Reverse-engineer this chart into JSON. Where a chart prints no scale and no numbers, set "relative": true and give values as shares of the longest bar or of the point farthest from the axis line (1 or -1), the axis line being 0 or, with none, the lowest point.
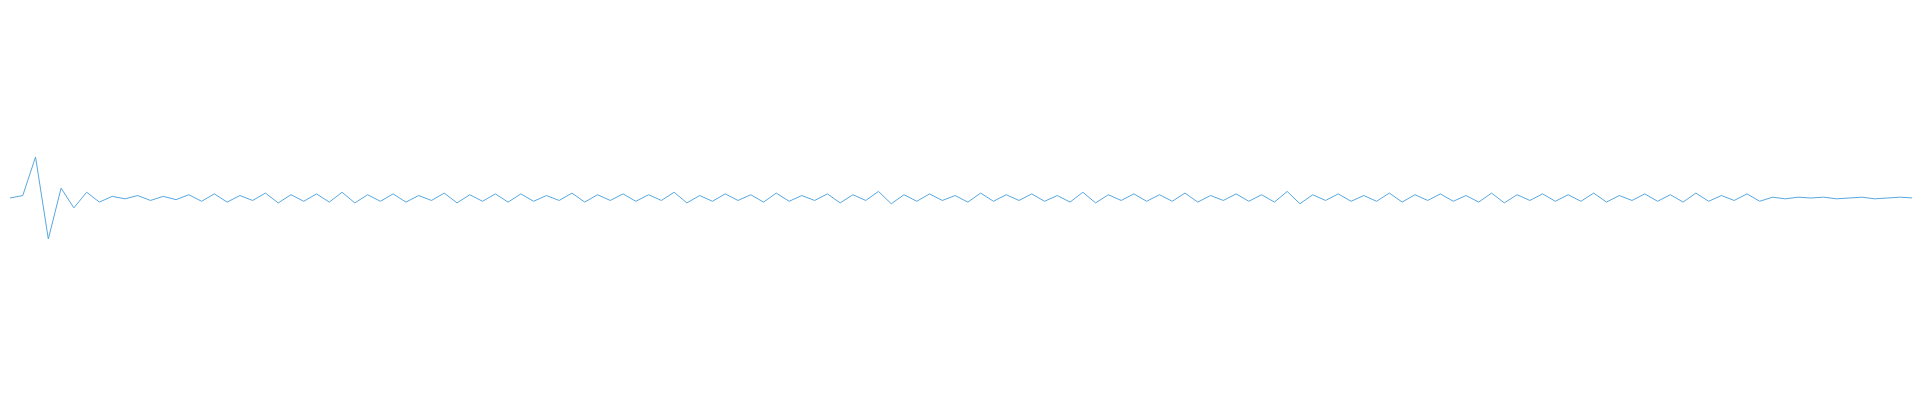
{
  "chart_data": {
    "type": "line",
    "relative": true,
    "color": "#58a8e0",
    "categories": [
      null,
      null,
      null,
      null,
      null,
      null,
      null,
      null,
      null,
      null,
      null,
      null,
      null,
      null,
      null,
      null,
      null,
      null,
      null,
      null,
      null,
      null,
      null,
      null,
      null,
      null,
      null,
      null,
      null,
      null,
      null,
      null,
      null,
      null,
      null,
      null,
      null,
      null,
      null,
      null,
      null,
      null,
      null,
      null,
      null,
      null,
      null,
      null,
      null,
      null,
      null,
      null,
      null,
      null,
      null,
      null,
      null,
      null,
      null,
      null,
      null,
      null,
      null,
      null,
      null,
      null,
      null,
      null,
      null,
      null,
      null,
      null,
      null,
      null,
      null,
      null,
      null,
      null,
      null,
      null,
      null,
      null,
      null,
      null,
      null,
      null,
      null,
      null,
      null,
      null,
      null,
      null,
      null,
      null,
      null,
      null,
      null,
      null,
      null,
      null,
      null,
      null,
      null,
      null,
      null,
      null,
      null,
      null,
      null,
      null,
      null,
      null,
      null,
      null,
      null,
      null,
      null,
      null,
      null,
      null,
      null,
      null,
      null,
      null,
      null,
      null,
      null,
      null,
      null,
      null,
      null,
      null,
      null,
      null,
      null,
      null,
      null,
      null,
      null,
      null,
      null,
      null,
      null,
      null,
      null,
      null,
      null,
      null,
      null,
      null
    ],
    "values": [
      0.5,
      0.53,
      1,
      0,
      0.62,
      0.38,
      0.57,
      0.45,
      0.52,
      0.49,
      0.53,
      0.47,
      0.52,
      0.48,
      0.54,
      0.46,
      0.55,
      0.45,
      0.53,
      0.47,
      0.56,
      0.44,
      0.54,
      0.46,
      0.55,
      0.45,
      0.57,
      0.44,
      0.54,
      0.46,
      0.55,
      0.45,
      0.53,
      0.47,
      0.56,
      0.44,
      0.54,
      0.46,
      0.55,
      0.45,
      0.55,
      0.46,
      0.53,
      0.47,
      0.56,
      0.45,
      0.54,
      0.47,
      0.55,
      0.46,
      0.54,
      0.47,
      0.57,
      0.44,
      0.53,
      0.46,
      0.55,
      0.47,
      0.54,
      0.45,
      0.56,
      0.46,
      0.53,
      0.47,
      0.55,
      0.44,
      0.54,
      0.47,
      0.58,
      0.43,
      0.54,
      0.46,
      0.55,
      0.47,
      0.53,
      0.45,
      0.56,
      0.46,
      0.54,
      0.47,
      0.55,
      0.46,
      0.53,
      0.45,
      0.57,
      0.44,
      0.54,
      0.47,
      0.55,
      0.46,
      0.54,
      0.46,
      0.56,
      0.45,
      0.53,
      0.47,
      0.55,
      0.46,
      0.54,
      0.45,
      0.58,
      0.43,
      0.54,
      0.47,
      0.55,
      0.46,
      0.53,
      0.46,
      0.56,
      0.45,
      0.54,
      0.47,
      0.55,
      0.46,
      0.53,
      0.45,
      0.56,
      0.44,
      0.54,
      0.47,
      0.55,
      0.46,
      0.54,
      0.46,
      0.56,
      0.45,
      0.53,
      0.47,
      0.55,
      0.46,
      0.54,
      0.45,
      0.56,
      0.46,
      0.53,
      0.47,
      0.55,
      0.46,
      0.51,
      0.49,
      0.51,
      0.5,
      0.51,
      0.49,
      0.5,
      0.51,
      0.49,
      0.5,
      0.51,
      0.5
    ]
  }
}
